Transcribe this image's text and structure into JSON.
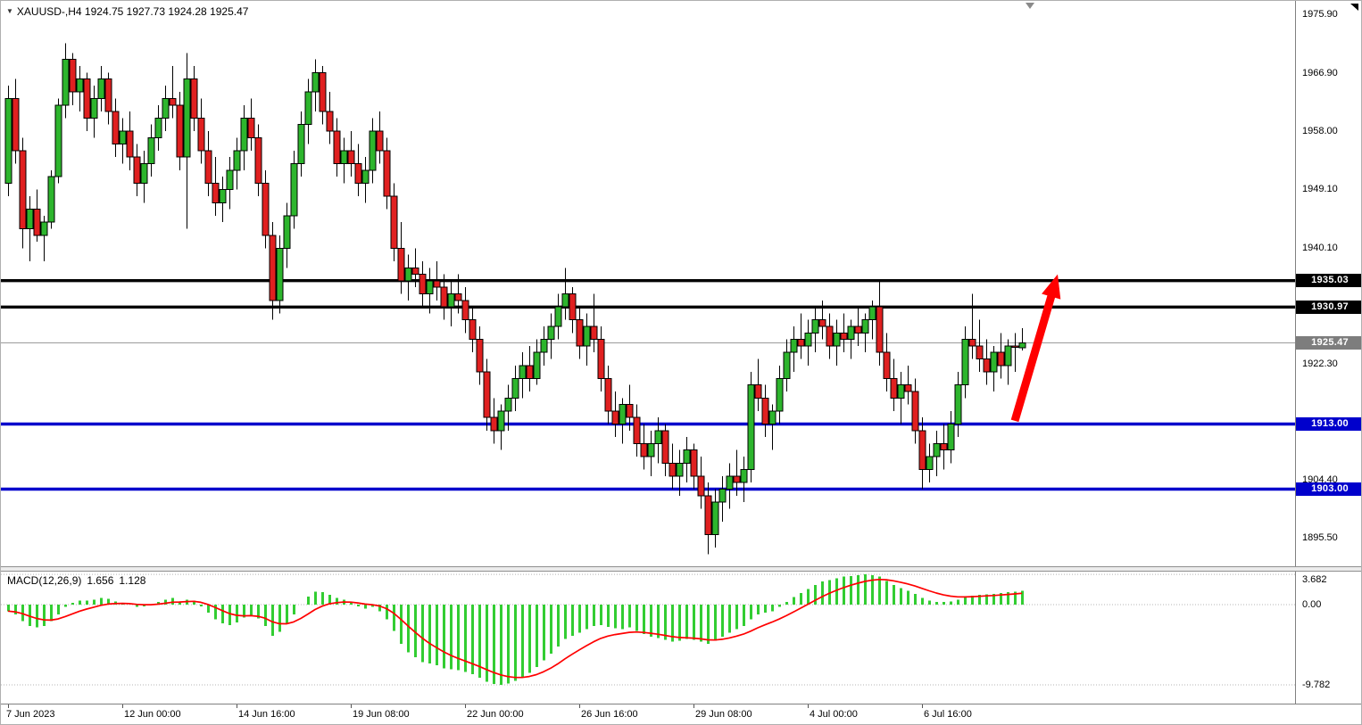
{
  "header": {
    "collapse_icon": "▼",
    "symbol": "XAUUSD-",
    "timeframe": "H4",
    "open": "1924.75",
    "high": "1927.73",
    "low": "1924.28",
    "close": "1925.47",
    "full_text": "XAUUSD-,H4 1924.75 1927.73 1924.28 1925.47"
  },
  "chart_data": {
    "type": "candlestick",
    "title": "XAUUSD- H4 chart with MACD",
    "price_range": {
      "top": 1978.0,
      "bottom": 1891.15
    },
    "macd_range": {
      "top": 4.02,
      "bottom": -12.07
    },
    "price_ticks": [
      1975.9,
      1966.9,
      1958.0,
      1949.1,
      1940.1,
      1922.3,
      1904.4,
      1895.5
    ],
    "x_labels": [
      {
        "bar": 0,
        "text": "7 Jun 2023"
      },
      {
        "bar": 16,
        "text": "12 Jun 00:00"
      },
      {
        "bar": 32,
        "text": "14 Jun 16:00"
      },
      {
        "bar": 48,
        "text": "19 Jun 08:00"
      },
      {
        "bar": 64,
        "text": "22 Jun 00:00"
      },
      {
        "bar": 80,
        "text": "26 Jun 16:00"
      },
      {
        "bar": 96,
        "text": "29 Jun 08:00"
      },
      {
        "bar": 112,
        "text": "4 Jul 00:00"
      },
      {
        "bar": 128,
        "text": "6 Jul 16:00"
      }
    ],
    "horizontal_levels": [
      {
        "price": 1935.03,
        "label": "1935.03",
        "color": "#000000"
      },
      {
        "price": 1930.97,
        "label": "1930.97",
        "color": "#000000"
      },
      {
        "price": 1913.0,
        "label": "1913.00",
        "color": "#0000cc"
      },
      {
        "price": 1903.0,
        "label": "1903.00",
        "color": "#0000cc"
      }
    ],
    "current_price": {
      "price": 1925.47,
      "label": "1925.47",
      "line_color": "#9b9b9b",
      "badge_color": "#7d7d7d"
    },
    "colors": {
      "bull": "#2db52d",
      "bear": "#e02020",
      "wick": "#000000"
    },
    "arrow": {
      "from_bar": 141,
      "from_price": 1913.5,
      "to_bar": 147,
      "to_price": 1936.0,
      "color": "#ff0000"
    },
    "candles": [
      [
        1950,
        1965,
        1948,
        1963
      ],
      [
        1963,
        1966,
        1953,
        1955
      ],
      [
        1955,
        1957,
        1940,
        1943
      ],
      [
        1943,
        1948,
        1938,
        1946
      ],
      [
        1946,
        1949,
        1941,
        1942
      ],
      [
        1942,
        1945,
        1938,
        1944
      ],
      [
        1944,
        1952,
        1943,
        1951
      ],
      [
        1951,
        1963,
        1950,
        1962
      ],
      [
        1962,
        1971.5,
        1960,
        1969
      ],
      [
        1969,
        1970,
        1962,
        1964
      ],
      [
        1964,
        1968,
        1961,
        1966
      ],
      [
        1966,
        1967,
        1958,
        1960
      ],
      [
        1960,
        1965,
        1957,
        1963
      ],
      [
        1963,
        1968,
        1961,
        1966
      ],
      [
        1966,
        1967,
        1959,
        1961
      ],
      [
        1961,
        1963,
        1954,
        1956
      ],
      [
        1956,
        1960,
        1953,
        1958
      ],
      [
        1958,
        1961,
        1952,
        1954
      ],
      [
        1954,
        1956,
        1948,
        1950
      ],
      [
        1950,
        1955,
        1947,
        1953
      ],
      [
        1953,
        1959,
        1951,
        1957
      ],
      [
        1957,
        1962,
        1955,
        1960
      ],
      [
        1960,
        1965,
        1958,
        1963
      ],
      [
        1963,
        1968,
        1960,
        1962
      ],
      [
        1962,
        1964,
        1952,
        1954
      ],
      [
        1954,
        1970,
        1943,
        1966
      ],
      [
        1966,
        1968,
        1958,
        1960
      ],
      [
        1960,
        1963,
        1953,
        1955
      ],
      [
        1955,
        1958,
        1948,
        1950
      ],
      [
        1950,
        1954,
        1945,
        1947
      ],
      [
        1947,
        1951,
        1944,
        1949
      ],
      [
        1949,
        1954,
        1946,
        1952
      ],
      [
        1952,
        1957,
        1949,
        1955
      ],
      [
        1955,
        1962,
        1952,
        1960
      ],
      [
        1960,
        1963,
        1955,
        1957
      ],
      [
        1957,
        1959,
        1948,
        1950
      ],
      [
        1950,
        1952,
        1940,
        1942
      ],
      [
        1942,
        1944,
        1929,
        1932
      ],
      [
        1932,
        1942,
        1930,
        1940
      ],
      [
        1940,
        1947,
        1937,
        1945
      ],
      [
        1945,
        1955,
        1943,
        1953
      ],
      [
        1953,
        1961,
        1951,
        1959
      ],
      [
        1959,
        1966,
        1956,
        1964
      ],
      [
        1964,
        1969,
        1961,
        1967
      ],
      [
        1967,
        1968,
        1959,
        1961
      ],
      [
        1961,
        1964,
        1956,
        1958
      ],
      [
        1958,
        1960,
        1951,
        1953
      ],
      [
        1953,
        1957,
        1950,
        1955
      ],
      [
        1955,
        1958,
        1951,
        1953
      ],
      [
        1953,
        1956,
        1948,
        1950
      ],
      [
        1950,
        1954,
        1947,
        1952
      ],
      [
        1952,
        1960,
        1950,
        1958
      ],
      [
        1958,
        1961,
        1953,
        1955
      ],
      [
        1955,
        1957,
        1946,
        1948
      ],
      [
        1948,
        1950,
        1938,
        1940
      ],
      [
        1940,
        1944,
        1933,
        1935
      ],
      [
        1935,
        1939,
        1932,
        1937
      ],
      [
        1937,
        1940,
        1934,
        1936
      ],
      [
        1936,
        1938,
        1931,
        1933
      ],
      [
        1933,
        1937,
        1930,
        1935
      ],
      [
        1935,
        1938,
        1932,
        1934
      ],
      [
        1934,
        1936,
        1929,
        1931
      ],
      [
        1931,
        1935,
        1928,
        1933
      ],
      [
        1933,
        1936,
        1930,
        1932
      ],
      [
        1932,
        1934,
        1927,
        1929
      ],
      [
        1929,
        1931,
        1924,
        1926
      ],
      [
        1926,
        1928,
        1919,
        1921
      ],
      [
        1921,
        1923,
        1912,
        1914
      ],
      [
        1914,
        1917,
        1910,
        1912
      ],
      [
        1912,
        1916,
        1909,
        1915
      ],
      [
        1915,
        1919,
        1912,
        1917
      ],
      [
        1917,
        1922,
        1915,
        1920
      ],
      [
        1920,
        1924,
        1917,
        1922
      ],
      [
        1922,
        1925,
        1918,
        1920
      ],
      [
        1920,
        1926,
        1919,
        1924
      ],
      [
        1924,
        1928,
        1922,
        1926
      ],
      [
        1926,
        1930,
        1923,
        1928
      ],
      [
        1928,
        1933,
        1926,
        1931
      ],
      [
        1931,
        1937,
        1929,
        1933
      ],
      [
        1933,
        1934,
        1927,
        1929
      ],
      [
        1929,
        1931,
        1923,
        1925
      ],
      [
        1925,
        1930,
        1922,
        1928
      ],
      [
        1928,
        1933,
        1924,
        1926
      ],
      [
        1926,
        1928,
        1918,
        1920
      ],
      [
        1920,
        1922,
        1913,
        1915
      ],
      [
        1915,
        1918,
        1911,
        1913
      ],
      [
        1913,
        1917,
        1910,
        1916
      ],
      [
        1916,
        1919,
        1912,
        1914
      ],
      [
        1914,
        1916,
        1908,
        1910
      ],
      [
        1910,
        1913,
        1906,
        1908
      ],
      [
        1908,
        1912,
        1905,
        1910
      ],
      [
        1910,
        1914,
        1907,
        1912
      ],
      [
        1912,
        1913,
        1905,
        1907
      ],
      [
        1907,
        1910,
        1903,
        1905
      ],
      [
        1905,
        1909,
        1902,
        1907
      ],
      [
        1907,
        1911,
        1904,
        1909
      ],
      [
        1909,
        1910,
        1903,
        1905
      ],
      [
        1905,
        1908,
        1900,
        1902
      ],
      [
        1902,
        1904,
        1893,
        1896
      ],
      [
        1896,
        1903,
        1894,
        1901
      ],
      [
        1901,
        1905,
        1898,
        1903
      ],
      [
        1903,
        1907,
        1900,
        1905
      ],
      [
        1905,
        1909,
        1902,
        1904
      ],
      [
        1904,
        1908,
        1901,
        1906
      ],
      [
        1906,
        1921,
        1904,
        1919
      ],
      [
        1919,
        1923,
        1915,
        1917
      ],
      [
        1917,
        1919,
        1911,
        1913
      ],
      [
        1913,
        1916,
        1909,
        1915
      ],
      [
        1915,
        1922,
        1913,
        1920
      ],
      [
        1920,
        1926,
        1918,
        1924
      ],
      [
        1924,
        1928,
        1921,
        1926
      ],
      [
        1926,
        1930,
        1923,
        1925
      ],
      [
        1925,
        1929,
        1922,
        1927
      ],
      [
        1927,
        1931,
        1924,
        1929
      ],
      [
        1929,
        1932,
        1926,
        1928
      ],
      [
        1928,
        1930,
        1923,
        1925
      ],
      [
        1925,
        1929,
        1922,
        1927
      ],
      [
        1927,
        1930,
        1924,
        1926
      ],
      [
        1926,
        1929,
        1923,
        1928
      ],
      [
        1928,
        1931,
        1925,
        1927
      ],
      [
        1927,
        1930,
        1924,
        1929
      ],
      [
        1929,
        1932,
        1926,
        1931
      ],
      [
        1931,
        1935,
        1922,
        1924
      ],
      [
        1924,
        1927,
        1918,
        1920
      ],
      [
        1920,
        1923,
        1915,
        1917
      ],
      [
        1917,
        1921,
        1913,
        1919
      ],
      [
        1919,
        1922,
        1916,
        1918
      ],
      [
        1918,
        1920,
        1910,
        1912
      ],
      [
        1912,
        1914,
        1903,
        1906
      ],
      [
        1906,
        1910,
        1904,
        1908
      ],
      [
        1908,
        1912,
        1905,
        1910
      ],
      [
        1910,
        1913,
        1906,
        1909
      ],
      [
        1909,
        1915,
        1907,
        1913
      ],
      [
        1913,
        1921,
        1911,
        1919
      ],
      [
        1919,
        1928,
        1917,
        1926
      ],
      [
        1926,
        1933,
        1923,
        1925
      ],
      [
        1925,
        1929,
        1921,
        1923
      ],
      [
        1923,
        1926,
        1919,
        1921
      ],
      [
        1921,
        1925,
        1918,
        1924
      ],
      [
        1924,
        1927,
        1920,
        1922
      ],
      [
        1922,
        1926,
        1919,
        1925
      ],
      [
        1925,
        1927,
        1921,
        1924.75
      ],
      [
        1924.75,
        1927.73,
        1924.28,
        1925.47
      ]
    ],
    "macd": {
      "label": "MACD(12,26,9)",
      "main_value": "1.656",
      "signal_value": "1.128",
      "ticks": [
        3.682,
        0,
        -9.782
      ],
      "histogram_color": "#32cd32",
      "signal_color": "#ff0000",
      "signal_period": 9,
      "histogram": [
        -0.8,
        -1.2,
        -2.0,
        -2.6,
        -2.8,
        -2.6,
        -2.0,
        -1.2,
        -0.3,
        0.2,
        0.5,
        0.5,
        0.6,
        0.8,
        0.7,
        0.4,
        0.2,
        0.0,
        -0.3,
        -0.2,
        0.0,
        0.3,
        0.6,
        0.8,
        0.4,
        0.6,
        0.5,
        -0.2,
        -1.0,
        -1.8,
        -2.3,
        -2.5,
        -2.2,
        -1.6,
        -1.3,
        -1.7,
        -2.6,
        -3.8,
        -3.3,
        -2.4,
        -1.2,
        0.0,
        1.0,
        1.6,
        1.5,
        1.2,
        0.8,
        0.6,
        0.3,
        -0.2,
        -0.5,
        -0.3,
        -0.8,
        -1.8,
        -3.2,
        -4.8,
        -5.8,
        -6.4,
        -7.0,
        -7.2,
        -7.4,
        -7.8,
        -7.9,
        -8.0,
        -8.2,
        -8.5,
        -8.9,
        -9.4,
        -9.7,
        -9.782,
        -9.6,
        -9.3,
        -8.9,
        -8.3,
        -7.6,
        -6.8,
        -6.0,
        -5.1,
        -4.2,
        -3.8,
        -3.4,
        -3.0,
        -2.6,
        -2.5,
        -2.7,
        -2.9,
        -3.0,
        -2.8,
        -3.2,
        -3.6,
        -3.9,
        -4.1,
        -4.3,
        -4.5,
        -4.4,
        -4.2,
        -4.3,
        -4.5,
        -4.8,
        -4.4,
        -3.9,
        -3.4,
        -3.0,
        -2.6,
        -1.8,
        -1.2,
        -1.0,
        -0.8,
        -0.3,
        0.3,
        0.9,
        1.4,
        1.9,
        2.4,
        2.8,
        3.0,
        3.2,
        3.4,
        3.5,
        3.6,
        3.682,
        3.6,
        3.4,
        2.9,
        2.4,
        2.0,
        1.7,
        1.3,
        0.8,
        0.5,
        0.3,
        0.3,
        0.4,
        0.6,
        0.9,
        1.1,
        1.2,
        1.25,
        1.3,
        1.4,
        1.5,
        1.6,
        1.656
      ]
    }
  }
}
